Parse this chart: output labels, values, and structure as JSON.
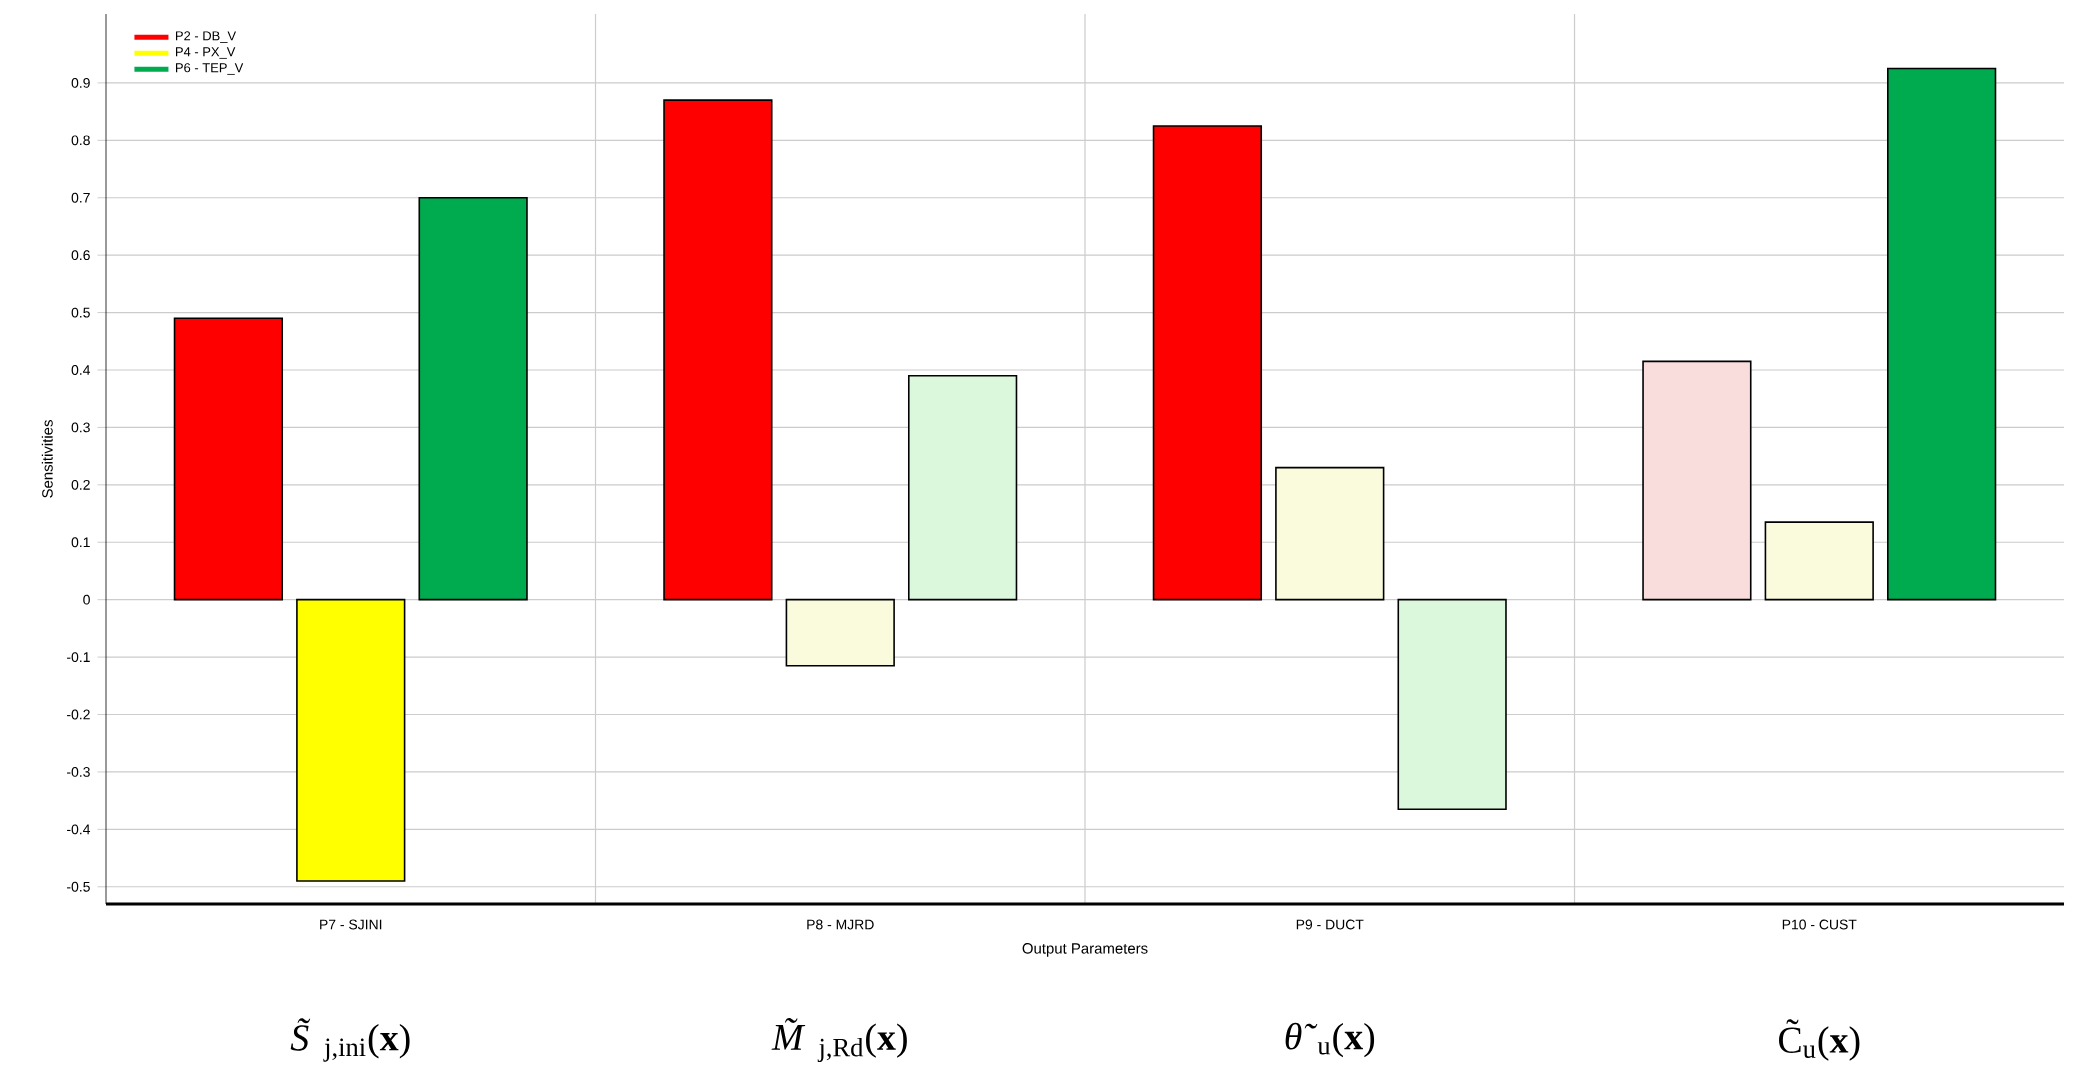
{
  "chart_data": {
    "type": "bar",
    "categories": [
      "P7 - SJINI",
      "P8 - MJRD",
      "P9 - DUCT",
      "P10 - CUST"
    ],
    "series": [
      {
        "name": "P2 - DB_V",
        "color": "#ff0000",
        "colors": [
          "#ff0000",
          "#ff0000",
          "#ff0000",
          "#f9dcdc"
        ],
        "values": [
          0.49,
          0.87,
          0.825,
          0.415
        ]
      },
      {
        "name": "P4 - PX_V",
        "color": "#ffff00",
        "colors": [
          "#ffff00",
          "#fafadc",
          "#fafadc",
          "#fafadc"
        ],
        "values": [
          -0.49,
          -0.115,
          0.23,
          0.135
        ]
      },
      {
        "name": "P6 - TEP_V",
        "color": "#00aa4f",
        "colors": [
          "#00aa4f",
          "#dcf8dc",
          "#dcf8dc",
          "#00aa4f"
        ],
        "values": [
          0.7,
          0.39,
          -0.365,
          0.925
        ]
      }
    ],
    "xlabel": "Output Parameters",
    "ylabel": "Sensitivities",
    "ylim": [
      -0.53,
      1.02
    ],
    "yticks": [
      -0.5,
      -0.4,
      -0.3,
      -0.2,
      -0.1,
      0,
      0.1,
      0.2,
      0.3,
      0.4,
      0.5,
      0.6,
      0.7,
      0.8,
      0.9
    ],
    "grid": true,
    "legend": "top left",
    "annotations": [
      "*S̃*$_{j,ini}$(**x**)",
      "*M̃*$_{j,Rd}$(**x**)",
      "*θ̃*$_{u}$(**x**)",
      "C̃$_{u}$(**x**)"
    ]
  }
}
